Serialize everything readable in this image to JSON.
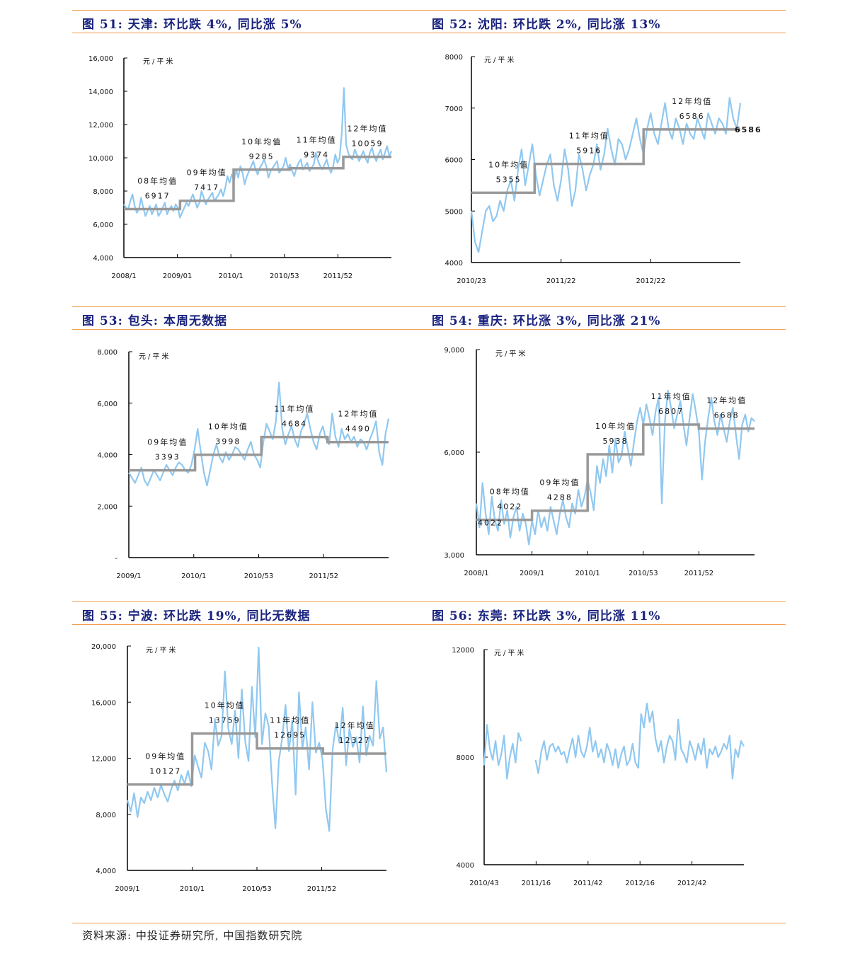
{
  "titles": [
    "图 51: 天津: 环比跌 4%, 同比涨 5%",
    "图 52: 沈阳: 环比跌 2%, 同比涨 13%",
    "图 53: 包头: 本周无数据",
    "图 54: 重庆: 环比涨 3%, 同比涨 21%",
    "图 55: 宁波: 环比跌 19%, 同比无数据",
    "图 56: 东莞: 环比跌 3%, 同比涨 11%"
  ],
  "source": "资料来源: 中投证券研究所, 中国指数研究院",
  "colors": {
    "line": "#90c8f0",
    "avg": "#999999",
    "title": "#1a237e",
    "rule": "#f0a050"
  },
  "chart_data": [
    {
      "type": "line",
      "title": "图 51: 天津: 环比跌 4%, 同比涨 5%",
      "unit": "元/平米",
      "ylim": [
        4000,
        16000
      ],
      "yticks": [
        4000,
        6000,
        8000,
        10000,
        12000,
        14000,
        16000
      ],
      "ytick_labels": [
        "4,000",
        "6,000",
        "8,000",
        "10,000",
        "12,000",
        "14,000",
        "16,000"
      ],
      "xlabels": [
        "2008/1",
        "2009/01",
        "2010/1",
        "2010/53",
        "2011/52"
      ],
      "n_points": 250,
      "series": [
        {
          "values": [
            7200,
            7000,
            6900,
            7400,
            7800,
            7100,
            6700,
            6900,
            7600,
            7000,
            6500,
            6800,
            7100,
            6600,
            6900,
            7200,
            6500,
            6700,
            7000,
            7300,
            6600,
            6900,
            7100,
            6800,
            7200,
            7000,
            6400,
            6700,
            7000,
            7300,
            7100,
            7500,
            7800,
            7400,
            7000,
            7300,
            8000,
            7600,
            7200,
            7500,
            7700,
            7900,
            7400,
            7600,
            7800,
            8100,
            7700,
            8200,
            8900,
            8500,
            9000,
            8600,
            9300,
            8800,
            9500,
            9100,
            8400,
            8900,
            9200,
            9500,
            9800,
            9300,
            9000,
            9400,
            9600,
            9900,
            9500,
            8800,
            9200,
            9400,
            9600,
            9800,
            9100,
            9300,
            9500,
            10000,
            9400,
            9600,
            9200,
            8900,
            9400,
            9700,
            9900,
            9300,
            9500,
            9700,
            9200,
            9400,
            9600,
            10300,
            9800,
            9500,
            9300,
            9600,
            9900,
            9400,
            9100,
            9500,
            10200,
            9700,
            10000,
            11500,
            14200,
            10800,
            10300,
            10000,
            9900,
            10500,
            10200,
            9800,
            10100,
            10400,
            10000,
            9700,
            10300,
            10600,
            10100,
            9800,
            10200,
            10500,
            9900,
            10300,
            10700,
            10100,
            10400
          ]
        }
      ],
      "averages": [
        {
          "label": "08年均值",
          "value": 6917,
          "x_range": [
            0.0,
            0.21
          ]
        },
        {
          "label": "09年均值",
          "value": 7417,
          "x_range": [
            0.21,
            0.41
          ]
        },
        {
          "label": "10年均值",
          "value": 9285,
          "x_range": [
            0.41,
            0.62
          ]
        },
        {
          "label": "11年均值",
          "value": 9374,
          "x_range": [
            0.62,
            0.82
          ]
        },
        {
          "label": "12年均值",
          "value": 10059,
          "x_range": [
            0.82,
            1.0
          ]
        }
      ]
    },
    {
      "type": "line",
      "title": "图 52: 沈阳: 环比跌 2%, 同比涨 13%",
      "unit": "元/平米",
      "ylim": [
        4000,
        8000
      ],
      "yticks": [
        4000,
        5000,
        6000,
        7000,
        8000
      ],
      "ytick_labels": [
        "4000",
        "5000",
        "6000",
        "7000",
        "8000"
      ],
      "xlabels": [
        "2010/23",
        "2011/22",
        "2012/22"
      ],
      "n_points": 150,
      "series": [
        {
          "values": [
            5000,
            4400,
            4200,
            4600,
            5000,
            5100,
            4800,
            4900,
            5200,
            5000,
            5400,
            5600,
            5200,
            5800,
            6200,
            5500,
            5900,
            6300,
            5700,
            5300,
            5600,
            5900,
            6100,
            5500,
            5200,
            5600,
            6200,
            5800,
            5100,
            5400,
            6100,
            5800,
            5400,
            5700,
            5900,
            6300,
            5800,
            6100,
            6600,
            6200,
            5900,
            6400,
            6300,
            6000,
            6200,
            6500,
            6800,
            6400,
            6100,
            6600,
            6900,
            6500,
            6300,
            6700,
            7100,
            6600,
            6400,
            6800,
            6600,
            6300,
            6700,
            6500,
            6400,
            6800,
            6600,
            6400,
            6900,
            6700,
            6500,
            6800,
            6700,
            6500,
            7200,
            6800,
            6600,
            7100
          ]
        }
      ],
      "averages": [
        {
          "label": "10年均值",
          "value": 5355,
          "x_range": [
            0.0,
            0.235
          ]
        },
        {
          "label": "11年均值",
          "value": 5916,
          "x_range": [
            0.235,
            0.64
          ]
        },
        {
          "label": "12年均值",
          "value": 6586,
          "x_range": [
            0.64,
            1.0
          ]
        }
      ],
      "end_label": "6586"
    },
    {
      "type": "line",
      "title": "图 53: 包头: 本周无数据",
      "unit": "元/平米",
      "ylim": [
        0,
        8000
      ],
      "yticks": [
        0,
        2000,
        4000,
        6000,
        8000
      ],
      "ytick_labels": [
        "-",
        "2,000",
        "4,000",
        "6,000",
        "8,000"
      ],
      "xlabels": [
        "2009/1",
        "2010/1",
        "2010/53",
        "2011/52"
      ],
      "n_points": 200,
      "series": [
        {
          "values": [
            3300,
            3100,
            2900,
            3200,
            3500,
            3000,
            2800,
            3100,
            3400,
            3200,
            3000,
            3300,
            3600,
            3400,
            3200,
            3500,
            3700,
            3600,
            3400,
            3300,
            3600,
            4200,
            5000,
            4100,
            3300,
            2800,
            3400,
            4000,
            4400,
            3900,
            3700,
            4100,
            3800,
            4000,
            4300,
            4200,
            4000,
            3800,
            4200,
            4500,
            4000,
            3800,
            3500,
            4500,
            5200,
            4900,
            4600,
            5300,
            6800,
            5000,
            4400,
            4800,
            5100,
            4600,
            4300,
            4900,
            5200,
            5600,
            5000,
            4500,
            4200,
            4800,
            5100,
            4600,
            4400,
            5600,
            4700,
            4300,
            5000,
            4600,
            4800,
            4500,
            4700,
            4300,
            4600,
            4500,
            4200,
            4600,
            4900,
            5300,
            4100,
            3600,
            4800,
            5400
          ]
        }
      ],
      "averages": [
        {
          "label": "09年均值",
          "value": 3393,
          "x_range": [
            0.0,
            0.255
          ]
        },
        {
          "label": "10年均值",
          "value": 3998,
          "x_range": [
            0.255,
            0.51
          ]
        },
        {
          "label": "11年均值",
          "value": 4684,
          "x_range": [
            0.51,
            0.765
          ]
        },
        {
          "label": "12年均值",
          "value": 4490,
          "x_range": [
            0.765,
            1.0
          ]
        }
      ]
    },
    {
      "type": "line",
      "title": "图 54: 重庆: 环比涨 3%, 同比涨 21%",
      "unit": "元/平米",
      "ylim": [
        3000,
        9000
      ],
      "yticks": [
        3000,
        6000,
        9000
      ],
      "ytick_labels": [
        "3,000",
        "6,000",
        "9,000"
      ],
      "xlabels": [
        "2008/1",
        "2009/1",
        "2010/1",
        "2010/53",
        "2011/52"
      ],
      "n_points": 250,
      "series": [
        {
          "values": [
            4500,
            3800,
            5100,
            4200,
            3600,
            4700,
            4000,
            3700,
            4600,
            3900,
            4300,
            3500,
            4100,
            4400,
            3700,
            4200,
            3900,
            3300,
            4000,
            3600,
            4300,
            3800,
            4100,
            3700,
            4400,
            4000,
            3600,
            4200,
            4600,
            4100,
            3800,
            4500,
            4200,
            4900,
            4400,
            4700,
            5200,
            4800,
            4300,
            5600,
            5100,
            5800,
            5300,
            6200,
            5400,
            6400,
            5700,
            5900,
            6600,
            6100,
            5600,
            6300,
            6900,
            7300,
            6800,
            7400,
            7000,
            6500,
            7200,
            7600,
            4500,
            6900,
            7800,
            7300,
            6700,
            7100,
            7500,
            6800,
            6200,
            7000,
            7700,
            7200,
            6600,
            5200,
            6300,
            7000,
            7600,
            6900,
            6500,
            7100,
            6700,
            6300,
            6900,
            7300,
            6500,
            5800,
            6800,
            7100,
            6600,
            7000,
            6900
          ]
        }
      ],
      "averages": [
        {
          "label": "08年均值",
          "value": 4022,
          "x_range": [
            0.0,
            0.2
          ]
        },
        {
          "label": "09年均值",
          "value": 4288,
          "x_range": [
            0.2,
            0.4
          ]
        },
        {
          "label": "10年均值",
          "value": 5938,
          "x_range": [
            0.4,
            0.6
          ]
        },
        {
          "label": "11年均值",
          "value": 6807,
          "x_range": [
            0.6,
            0.8
          ]
        },
        {
          "label": "12年均值",
          "value": 6688,
          "x_range": [
            0.8,
            1.0
          ]
        }
      ],
      "start_label": "4022"
    },
    {
      "type": "line",
      "title": "图 55: 宁波: 环比跌 19%, 同比无数据",
      "unit": "元/平米",
      "ylim": [
        4000,
        20000
      ],
      "yticks": [
        4000,
        8000,
        12000,
        16000,
        20000
      ],
      "ytick_labels": [
        "4,000",
        "8,000",
        "12,000",
        "16,000",
        "20,000"
      ],
      "xlabels": [
        "2009/1",
        "2010/1",
        "2010/53",
        "2011/52"
      ],
      "n_points": 200,
      "series": [
        {
          "values": [
            9000,
            8200,
            9500,
            7800,
            9200,
            8800,
            9600,
            9000,
            9900,
            9200,
            10100,
            9400,
            8900,
            9800,
            10400,
            9700,
            10800,
            10200,
            11100,
            10000,
            12200,
            11400,
            10600,
            13100,
            12500,
            11200,
            14800,
            12900,
            13600,
            18200,
            14100,
            13000,
            15400,
            12000,
            16900,
            13200,
            11800,
            17100,
            13500,
            19900,
            13000,
            15200,
            14300,
            10200,
            7000,
            11800,
            13400,
            15800,
            12500,
            14700,
            9400,
            16700,
            12700,
            14200,
            11200,
            16000,
            12400,
            13100,
            11900,
            8400,
            6800,
            12600,
            14400,
            13100,
            15600,
            11500,
            14100,
            12800,
            13500,
            11700,
            15700,
            12200,
            13600,
            12900,
            17500,
            13400,
            14200,
            11000
          ]
        }
      ],
      "averages": [
        {
          "label": "09年均值",
          "value": 10127,
          "x_range": [
            0.0,
            0.25
          ]
        },
        {
          "label": "10年均值",
          "value": 13759,
          "x_range": [
            0.25,
            0.5
          ]
        },
        {
          "label": "11年均值",
          "value": 12695,
          "x_range": [
            0.5,
            0.755
          ]
        },
        {
          "label": "12年均值",
          "value": 12327,
          "x_range": [
            0.755,
            1.0
          ]
        }
      ]
    },
    {
      "type": "line",
      "title": "图 56: 东莞: 环比跌 3%, 同比涨 11%",
      "unit": "元/平米",
      "ylim": [
        4000,
        12000
      ],
      "yticks": [
        4000,
        8000,
        12000
      ],
      "ytick_labels": [
        "4000",
        "8000",
        "12000"
      ],
      "xlabels": [
        "2010/43",
        "2011/16",
        "2011/42",
        "2012/16",
        "2012/42"
      ],
      "n_points": 150,
      "series": [
        {
          "values": [
            7700,
            9200,
            8300,
            7900,
            8600,
            7700,
            8100,
            8800,
            7200,
            8000,
            8500,
            7800,
            8900,
            8600,
            null,
            null,
            null,
            null,
            7900,
            7400,
            8200,
            8600,
            7900,
            8400,
            8500,
            8200,
            8400,
            8100,
            8200,
            7800,
            8300,
            8700,
            8000,
            8800,
            8200,
            8000,
            8400,
            9100,
            8200,
            8600,
            8000,
            8300,
            7800,
            8500,
            8200,
            7700,
            8300,
            7600,
            8100,
            8400,
            7700,
            7900,
            8500,
            7800,
            7600,
            9600,
            9100,
            10000,
            9300,
            9700,
            8700,
            8200,
            8600,
            7800,
            8400,
            8800,
            8600,
            7900,
            9400,
            8300,
            8100,
            7800,
            8600,
            8300,
            7900,
            8500,
            8100,
            8700,
            7600,
            8300,
            8100,
            8400,
            8000,
            8200,
            8500,
            8300,
            8800,
            7200,
            8300,
            8000,
            8600,
            8400
          ]
        }
      ],
      "averages": []
    }
  ]
}
